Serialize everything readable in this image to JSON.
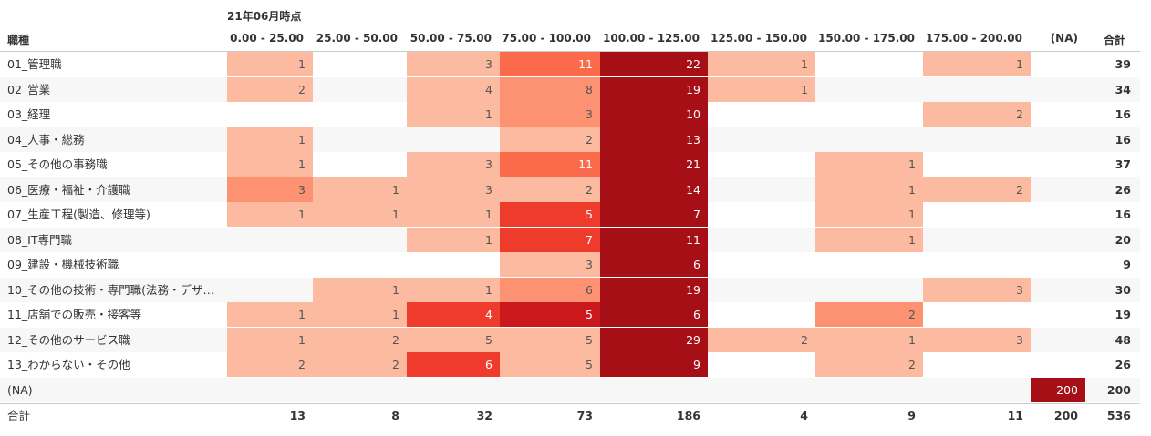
{
  "header": {
    "group_label": "21年06月時点",
    "row_field_label": "職種",
    "total_label": "合計"
  },
  "colors": {
    "scale": [
      "#fcbba1",
      "#fc9272",
      "#fb6a4a",
      "#ef3b2c",
      "#cb181d",
      "#a50f15"
    ],
    "text_dark": "#555555",
    "text_light": "#ffffff",
    "stripe": "#f7f7f7"
  },
  "chart_data": {
    "type": "heatmap",
    "title": "21年06月時点",
    "columns": [
      "0.00 - 25.00",
      "25.00 - 50.00",
      "50.00 - 75.00",
      "75.00 - 100.00",
      "100.00 - 125.00",
      "125.00 - 150.00",
      "150.00 - 175.00",
      "175.00 - 200.00",
      "(NA)"
    ],
    "rows": [
      "01_管理職",
      "02_営業",
      "03_経理",
      "04_人事・総務",
      "05_その他の事務職",
      "06_医療・福祉・介護職",
      "07_生産工程(製造、修理等)",
      "08_IT専門職",
      "09_建設・機械技術職",
      "10_その他の技術・専門職(法務・デザ…",
      "11_店舗での販売・接客等",
      "12_その他のサービス職",
      "13_わからない・その他",
      "(NA)"
    ],
    "values": [
      [
        1,
        null,
        3,
        11,
        22,
        1,
        null,
        1,
        null
      ],
      [
        2,
        null,
        4,
        8,
        19,
        1,
        null,
        null,
        null
      ],
      [
        null,
        null,
        1,
        3,
        10,
        null,
        null,
        2,
        null
      ],
      [
        1,
        null,
        null,
        2,
        13,
        null,
        null,
        null,
        null
      ],
      [
        1,
        null,
        3,
        11,
        21,
        null,
        1,
        null,
        null
      ],
      [
        3,
        1,
        3,
        2,
        14,
        null,
        1,
        2,
        null
      ],
      [
        1,
        1,
        1,
        5,
        7,
        null,
        1,
        null,
        null
      ],
      [
        null,
        null,
        1,
        7,
        11,
        null,
        1,
        null,
        null
      ],
      [
        null,
        null,
        null,
        3,
        6,
        null,
        null,
        null,
        null
      ],
      [
        null,
        1,
        1,
        6,
        19,
        null,
        null,
        3,
        null
      ],
      [
        1,
        1,
        4,
        5,
        6,
        null,
        2,
        null,
        null
      ],
      [
        1,
        2,
        5,
        5,
        29,
        2,
        1,
        3,
        null
      ],
      [
        2,
        2,
        6,
        5,
        9,
        null,
        2,
        null,
        null
      ],
      [
        null,
        null,
        null,
        null,
        null,
        null,
        null,
        null,
        200
      ]
    ],
    "row_totals": [
      39,
      34,
      16,
      16,
      37,
      26,
      16,
      20,
      9,
      30,
      19,
      48,
      26,
      200
    ],
    "column_totals": [
      13,
      8,
      32,
      73,
      186,
      4,
      9,
      11,
      200
    ],
    "grand_total": 536,
    "cell_colors": [
      [
        "#fcbba1",
        null,
        "#fcbba1",
        "#fb6a4a",
        "#a50f15",
        "#fcbba1",
        null,
        "#fcbba1",
        null
      ],
      [
        "#fcbba1",
        null,
        "#fcbba1",
        "#fc9272",
        "#a50f15",
        "#fcbba1",
        null,
        null,
        null
      ],
      [
        null,
        null,
        "#fcbba1",
        "#fc9272",
        "#a50f15",
        null,
        null,
        "#fcbba1",
        null
      ],
      [
        "#fcbba1",
        null,
        null,
        "#fcbba1",
        "#a50f15",
        null,
        null,
        null,
        null
      ],
      [
        "#fcbba1",
        null,
        "#fcbba1",
        "#fb6a4a",
        "#a50f15",
        null,
        "#fcbba1",
        null,
        null
      ],
      [
        "#fc9272",
        "#fcbba1",
        "#fcbba1",
        "#fcbba1",
        "#a50f15",
        null,
        "#fcbba1",
        "#fcbba1",
        null
      ],
      [
        "#fcbba1",
        "#fcbba1",
        "#fcbba1",
        "#ef3b2c",
        "#a50f15",
        null,
        "#fcbba1",
        null,
        null
      ],
      [
        null,
        null,
        "#fcbba1",
        "#ef3b2c",
        "#a50f15",
        null,
        "#fcbba1",
        null,
        null
      ],
      [
        null,
        null,
        null,
        "#fcbba1",
        "#a50f15",
        null,
        null,
        null,
        null
      ],
      [
        null,
        "#fcbba1",
        "#fcbba1",
        "#fc9272",
        "#a50f15",
        null,
        null,
        "#fcbba1",
        null
      ],
      [
        "#fcbba1",
        "#fcbba1",
        "#ef3b2c",
        "#cb181d",
        "#a50f15",
        null,
        "#fc9272",
        null,
        null
      ],
      [
        "#fcbba1",
        "#fcbba1",
        "#fcbba1",
        "#fcbba1",
        "#a50f15",
        "#fcbba1",
        "#fcbba1",
        "#fcbba1",
        null
      ],
      [
        "#fcbba1",
        "#fcbba1",
        "#ef3b2c",
        "#fcbba1",
        "#a50f15",
        null,
        "#fcbba1",
        null,
        null
      ],
      [
        null,
        null,
        null,
        null,
        null,
        null,
        null,
        null,
        "#a50f15"
      ]
    ]
  }
}
